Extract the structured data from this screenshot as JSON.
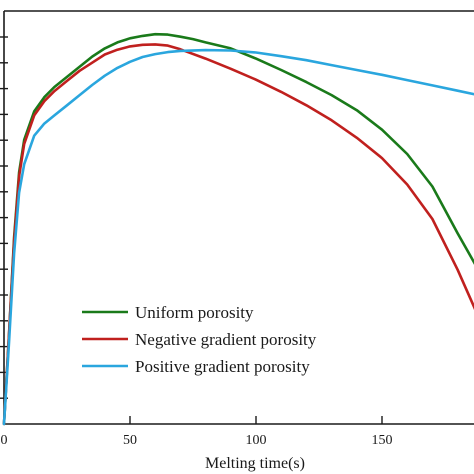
{
  "chart_data": {
    "type": "line",
    "title": "",
    "xlabel": "Melting time(s)",
    "ylabel": "",
    "xlim": [
      0,
      190
    ],
    "x_ticks": [
      0,
      50,
      100,
      150
    ],
    "x_tick_labels": [
      "0",
      "50",
      "100",
      "150"
    ],
    "grid": false,
    "legend_position": "bottom-center",
    "series": [
      {
        "name": "Uniform porosity",
        "color": "#1a7a1a",
        "points": [
          [
            0,
            0
          ],
          [
            2,
            22
          ],
          [
            4,
            46
          ],
          [
            6,
            62
          ],
          [
            8,
            70
          ],
          [
            12,
            77
          ],
          [
            16,
            80.5
          ],
          [
            20,
            83
          ],
          [
            25,
            85.5
          ],
          [
            30,
            88
          ],
          [
            35,
            90.5
          ],
          [
            40,
            92.5
          ],
          [
            45,
            94
          ],
          [
            50,
            95
          ],
          [
            55,
            95.6
          ],
          [
            60,
            96
          ],
          [
            65,
            95.9
          ],
          [
            70,
            95.4
          ],
          [
            75,
            94.8
          ],
          [
            80,
            94
          ],
          [
            90,
            92.5
          ],
          [
            100,
            90
          ],
          [
            110,
            87.2
          ],
          [
            120,
            84.2
          ],
          [
            130,
            81
          ],
          [
            140,
            77.3
          ],
          [
            150,
            72.5
          ],
          [
            160,
            66.5
          ],
          [
            170,
            58.5
          ],
          [
            180,
            47
          ],
          [
            190,
            36
          ]
        ]
      },
      {
        "name": "Negative gradient porosity",
        "color": "#c0201e",
        "points": [
          [
            0,
            0
          ],
          [
            2,
            22
          ],
          [
            4,
            45
          ],
          [
            6,
            61
          ],
          [
            8,
            69
          ],
          [
            12,
            76
          ],
          [
            16,
            79.5
          ],
          [
            20,
            82
          ],
          [
            25,
            84.5
          ],
          [
            30,
            87
          ],
          [
            35,
            89
          ],
          [
            40,
            91
          ],
          [
            45,
            92.2
          ],
          [
            50,
            93
          ],
          [
            55,
            93.4
          ],
          [
            60,
            93.5
          ],
          [
            65,
            93.2
          ],
          [
            70,
            92.3
          ],
          [
            80,
            90
          ],
          [
            90,
            87.5
          ],
          [
            100,
            84.8
          ],
          [
            110,
            81.8
          ],
          [
            120,
            78.5
          ],
          [
            130,
            74.8
          ],
          [
            140,
            70.5
          ],
          [
            150,
            65.5
          ],
          [
            160,
            59
          ],
          [
            170,
            50.5
          ],
          [
            180,
            38
          ],
          [
            190,
            24
          ]
        ]
      },
      {
        "name": "Positive gradient porosity",
        "color": "#2aa6de",
        "points": [
          [
            0,
            0
          ],
          [
            2,
            20
          ],
          [
            4,
            42
          ],
          [
            6,
            57
          ],
          [
            8,
            64
          ],
          [
            12,
            71
          ],
          [
            16,
            74
          ],
          [
            20,
            76
          ],
          [
            25,
            78.5
          ],
          [
            30,
            81
          ],
          [
            35,
            83.5
          ],
          [
            40,
            85.8
          ],
          [
            45,
            87.7
          ],
          [
            50,
            89.2
          ],
          [
            55,
            90.4
          ],
          [
            60,
            91.1
          ],
          [
            65,
            91.6
          ],
          [
            70,
            91.9
          ],
          [
            80,
            92.1
          ],
          [
            90,
            92
          ],
          [
            100,
            91.5
          ],
          [
            110,
            90.6
          ],
          [
            120,
            89.6
          ],
          [
            130,
            88.4
          ],
          [
            140,
            87.2
          ],
          [
            150,
            86
          ],
          [
            160,
            84.7
          ],
          [
            170,
            83.4
          ],
          [
            180,
            82.1
          ],
          [
            190,
            80.8
          ]
        ]
      }
    ]
  }
}
